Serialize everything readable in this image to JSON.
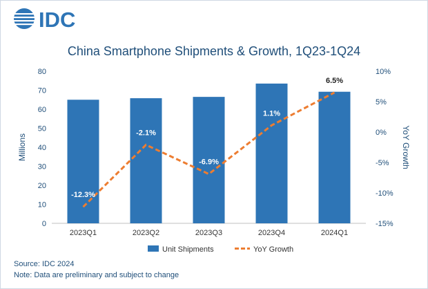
{
  "header": {
    "brand": "IDC",
    "title": "China Smartphone Shipments & Growth, 1Q23-1Q24"
  },
  "footer": {
    "source": "Source: IDC 2024",
    "note": "Note: Data are preliminary and subject to change"
  },
  "colors": {
    "bar": "#2e75b6",
    "line": "#ed7d31",
    "text_accent": "#1f4e79"
  },
  "chart_data": {
    "type": "bar",
    "title": "China Smartphone Shipments & Growth, 1Q23-1Q24",
    "categories": [
      "2023Q1",
      "2023Q2",
      "2023Q3",
      "2023Q4",
      "2024Q1"
    ],
    "ylabel": "Millions",
    "ylim": [
      0,
      80
    ],
    "yticks": [
      0,
      10,
      20,
      30,
      40,
      50,
      60,
      70,
      80
    ],
    "y2label": "YoY Growth",
    "y2lim": [
      -15,
      10
    ],
    "y2ticks": [
      "-15%",
      "-10%",
      "-5%",
      "0%",
      "5%",
      "10%"
    ],
    "y2tick_values": [
      -15,
      -10,
      -5,
      0,
      5,
      10
    ],
    "series": [
      {
        "name": "Unit Shipments",
        "type": "bar",
        "values": [
          65,
          65.8,
          66.5,
          73.5,
          69.2
        ]
      },
      {
        "name": "YoY Growth",
        "type": "line",
        "style": "dashed",
        "axis": "right",
        "values": [
          -12.3,
          -2.1,
          -6.9,
          1.1,
          6.5
        ],
        "labels": [
          "-12.3%",
          "-2.1%",
          "-6.9%",
          "1.1%",
          "6.5%"
        ]
      }
    ],
    "legend_position": "bottom",
    "grid": false
  }
}
